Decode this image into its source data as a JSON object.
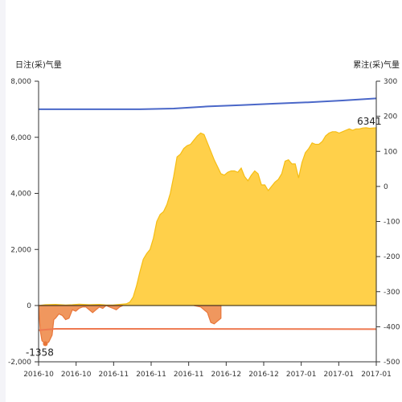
{
  "chart_data": {
    "type": "area",
    "left_axis": {
      "title": "日注(采)气量",
      "ylim": [
        -2000,
        8000
      ],
      "ticks": [
        "8,000",
        "6,000",
        "4,000",
        "2,000",
        "0",
        "-2,000"
      ],
      "tick_values": [
        8000,
        6000,
        4000,
        2000,
        0,
        -2000
      ]
    },
    "right_axis": {
      "title": "累注(采)气量",
      "ylim": [
        -500,
        300
      ],
      "ticks": [
        "300",
        "200",
        "100",
        "0",
        "-100",
        "-200",
        "-300",
        "-400",
        "-500"
      ],
      "tick_values": [
        300,
        200,
        100,
        0,
        -100,
        -200,
        -300,
        -400,
        -500
      ]
    },
    "x_ticks": [
      "2016-10",
      "2016-10",
      "2016-11",
      "2016-11",
      "2016-11",
      "2016-12",
      "2016-12",
      "2017-01",
      "2017-01",
      "2017-01"
    ],
    "x_domain": [
      0,
      100
    ],
    "grid": false,
    "series": [
      {
        "kind": "area",
        "axis": "left",
        "color": "#ffd04a",
        "stroke": "#f5bd14",
        "points": [
          [
            0,
            0
          ],
          [
            2,
            30
          ],
          [
            5,
            40
          ],
          [
            8,
            20
          ],
          [
            10,
            30
          ],
          [
            12,
            50
          ],
          [
            15,
            30
          ],
          [
            18,
            40
          ],
          [
            20,
            20
          ],
          [
            22,
            20
          ],
          [
            24,
            40
          ],
          [
            26,
            60
          ],
          [
            27,
            120
          ],
          [
            28,
            300
          ],
          [
            29,
            700
          ],
          [
            30,
            1200
          ],
          [
            31,
            1650
          ],
          [
            32,
            1850
          ],
          [
            33,
            2000
          ],
          [
            34,
            2400
          ],
          [
            35,
            3000
          ],
          [
            36,
            3250
          ],
          [
            37,
            3350
          ],
          [
            38,
            3600
          ],
          [
            39,
            4000
          ],
          [
            40,
            4600
          ],
          [
            41,
            5300
          ],
          [
            42,
            5400
          ],
          [
            43,
            5600
          ],
          [
            44,
            5700
          ],
          [
            45,
            5750
          ],
          [
            46,
            5900
          ],
          [
            47,
            6050
          ],
          [
            48,
            6150
          ],
          [
            49,
            6100
          ],
          [
            50,
            5800
          ],
          [
            51,
            5500
          ],
          [
            52,
            5200
          ],
          [
            53,
            4950
          ],
          [
            54,
            4700
          ],
          [
            55,
            4650
          ],
          [
            56,
            4750
          ],
          [
            57,
            4800
          ],
          [
            58,
            4800
          ],
          [
            59,
            4750
          ],
          [
            60,
            4900
          ],
          [
            61,
            4600
          ],
          [
            62,
            4450
          ],
          [
            63,
            4650
          ],
          [
            64,
            4800
          ],
          [
            65,
            4700
          ],
          [
            66,
            4300
          ],
          [
            67,
            4300
          ],
          [
            68,
            4100
          ],
          [
            69,
            4250
          ],
          [
            70,
            4400
          ],
          [
            71,
            4500
          ],
          [
            72,
            4700
          ],
          [
            73,
            5150
          ],
          [
            74,
            5200
          ],
          [
            75,
            5050
          ],
          [
            76,
            5050
          ],
          [
            77,
            4550
          ],
          [
            78,
            5100
          ],
          [
            79,
            5450
          ],
          [
            80,
            5600
          ],
          [
            81,
            5800
          ],
          [
            82,
            5750
          ],
          [
            83,
            5750
          ],
          [
            84,
            5850
          ],
          [
            85,
            6050
          ],
          [
            86,
            6150
          ],
          [
            87,
            6200
          ],
          [
            88,
            6200
          ],
          [
            89,
            6150
          ],
          [
            90,
            6200
          ],
          [
            91,
            6250
          ],
          [
            92,
            6300
          ],
          [
            93,
            6250
          ],
          [
            94,
            6300
          ],
          [
            95,
            6300
          ],
          [
            96,
            6330
          ],
          [
            97,
            6341
          ],
          [
            98,
            6320
          ],
          [
            100,
            6341
          ]
        ]
      },
      {
        "kind": "area",
        "axis": "left",
        "color": "#f0975e",
        "stroke": "#e8763a",
        "points": [
          [
            0,
            0
          ],
          [
            0.5,
            -900
          ],
          [
            1,
            -1250
          ],
          [
            2,
            -1358
          ],
          [
            3,
            -1300
          ],
          [
            4,
            -1050
          ],
          [
            4.5,
            -500
          ],
          [
            5,
            -450
          ],
          [
            6,
            -300
          ],
          [
            7,
            -350
          ],
          [
            8,
            -500
          ],
          [
            9,
            -450
          ],
          [
            10,
            -150
          ],
          [
            11,
            -200
          ],
          [
            12,
            -100
          ],
          [
            13,
            -50
          ],
          [
            14,
            -50
          ],
          [
            15,
            -150
          ],
          [
            16,
            -250
          ],
          [
            17,
            -150
          ],
          [
            18,
            -50
          ],
          [
            19,
            -100
          ],
          [
            20,
            0
          ],
          [
            21,
            -50
          ],
          [
            22,
            -100
          ],
          [
            23,
            -150
          ],
          [
            24,
            -50
          ],
          [
            25,
            0
          ]
        ],
        "points2": [
          [
            46,
            0
          ],
          [
            48,
            -50
          ],
          [
            49,
            -150
          ],
          [
            50,
            -250
          ],
          [
            51,
            -600
          ],
          [
            52,
            -650
          ],
          [
            53,
            -550
          ],
          [
            54,
            -450
          ],
          [
            54,
            0
          ]
        ]
      },
      {
        "kind": "line",
        "axis": "right",
        "color": "#4a67c8",
        "points": [
          [
            0,
            220
          ],
          [
            20,
            220
          ],
          [
            30,
            220
          ],
          [
            40,
            222
          ],
          [
            50,
            228
          ],
          [
            60,
            232
          ],
          [
            70,
            236
          ],
          [
            80,
            240
          ],
          [
            90,
            245
          ],
          [
            100,
            251
          ]
        ]
      },
      {
        "kind": "line",
        "axis": "right",
        "color": "#ee7950",
        "points": [
          [
            0,
            -410
          ],
          [
            5,
            -406
          ],
          [
            10,
            -406
          ],
          [
            100,
            -407
          ]
        ]
      }
    ],
    "data_labels": [
      {
        "text": "6341",
        "x": 97,
        "y": 6341,
        "axis": "left"
      },
      {
        "text": "-1358",
        "x": 2,
        "y": -1358,
        "axis": "left"
      }
    ]
  }
}
